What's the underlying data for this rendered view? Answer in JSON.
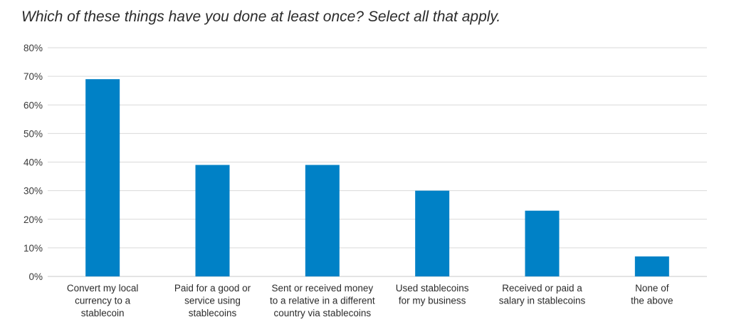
{
  "chart_data": {
    "type": "bar",
    "title": "Which of these things have you done at least once? Select all that apply.",
    "xlabel": "",
    "ylabel": "",
    "ylim": [
      0,
      80
    ],
    "yticks": [
      "0%",
      "10%",
      "20%",
      "30%",
      "40%",
      "50%",
      "60%",
      "70%",
      "80%"
    ],
    "grid": true,
    "categories": [
      [
        "Convert my local",
        "currency to a",
        "stablecoin"
      ],
      [
        "Paid for a good or",
        "service using",
        "stablecoins"
      ],
      [
        "Sent or received money",
        "to a relative in a different",
        "country via stablecoins"
      ],
      [
        "Used stablecoins",
        "for my business"
      ],
      [
        "Received or paid a",
        "salary in stablecoins"
      ],
      [
        "None of",
        "the above"
      ]
    ],
    "values": [
      69,
      39,
      39,
      30,
      23,
      7
    ],
    "color": "#0081c6"
  }
}
